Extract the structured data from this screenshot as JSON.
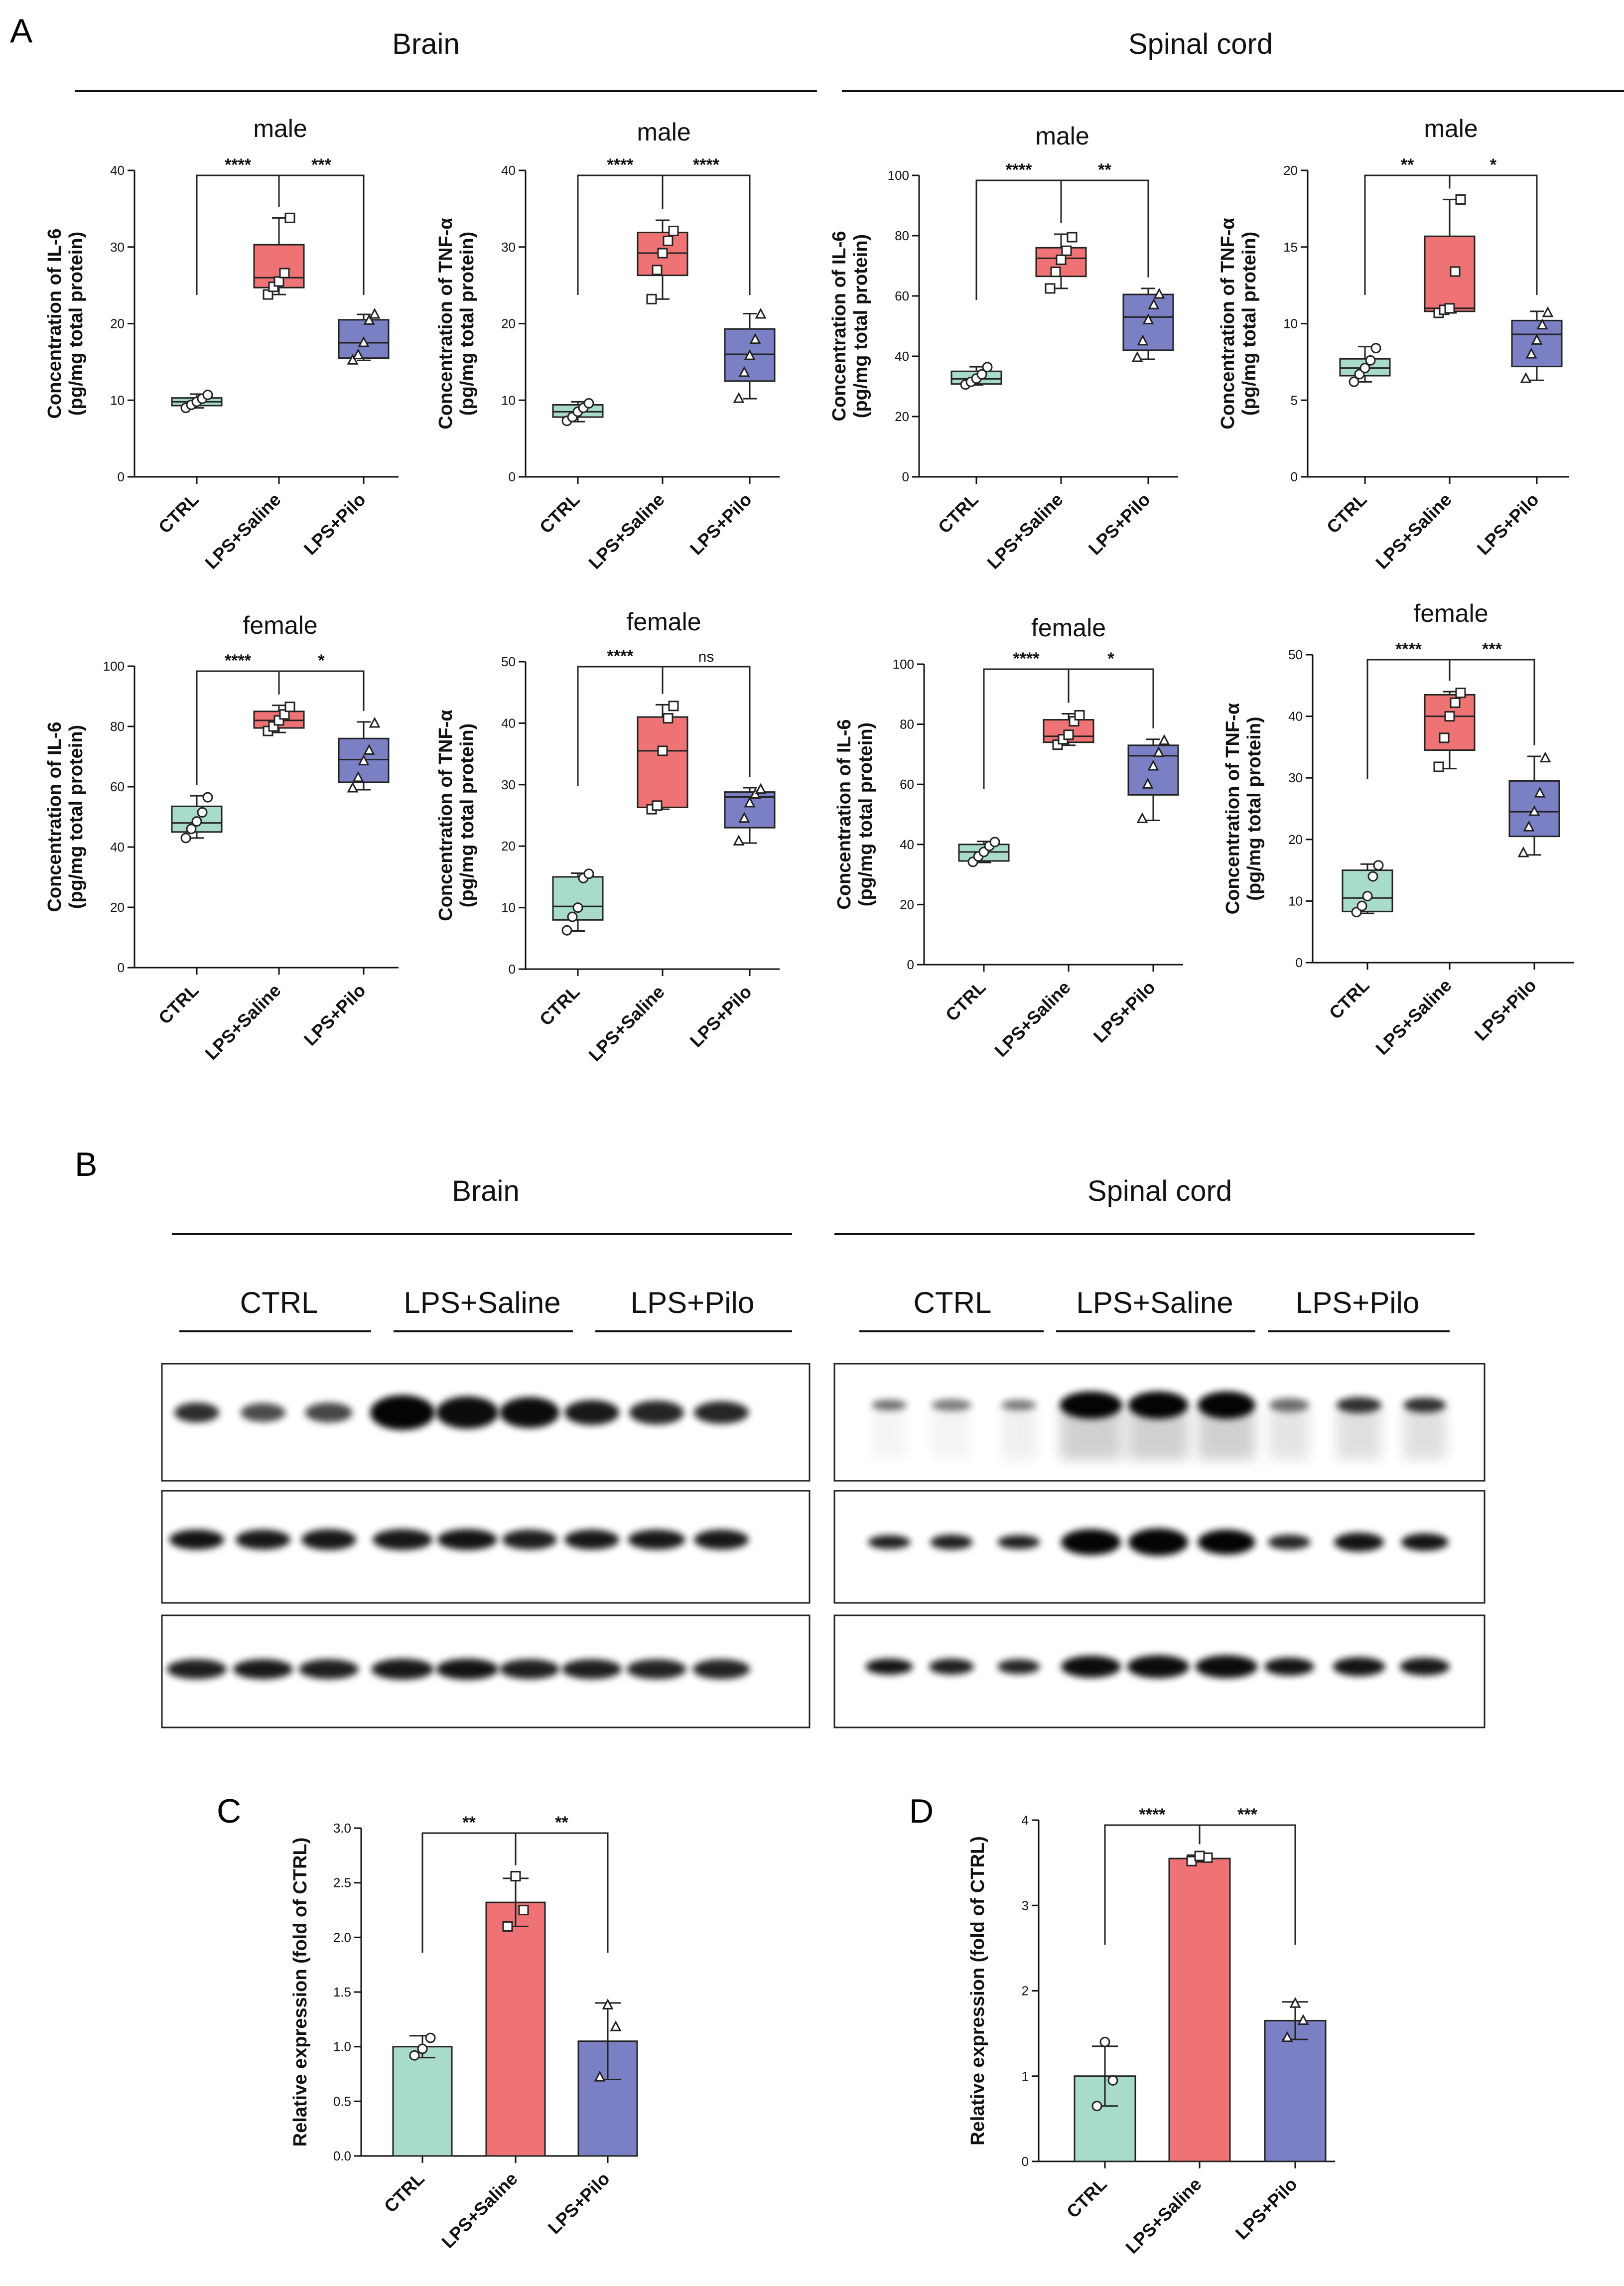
{
  "colors": {
    "CTRL": "#a8dcc8",
    "LPS+Saline": "#ef7374",
    "LPS+Pilo": "#7b7fc4"
  },
  "panel_A": {
    "letter": "A",
    "regions": [
      "Brain",
      "Spinal cord"
    ],
    "groups": [
      "CTRL",
      "LPS+Saline",
      "LPS+Pilo"
    ]
  },
  "panel_B": {
    "letter": "B",
    "regions": [
      "Brain",
      "Spinal cord"
    ],
    "lanes": [
      "CTRL",
      "LPS+Saline",
      "LPS+Pilo"
    ]
  },
  "panel_C": {
    "letter": "C"
  },
  "panel_D": {
    "letter": "D"
  },
  "chart_data": [
    {
      "id": "a1",
      "type": "box",
      "title": "male",
      "ylabel": [
        "Concentration of IL-6",
        "(pg/mg total protein)"
      ],
      "categories": [
        "CTRL",
        "LPS+Saline",
        "LPS+Pilo"
      ],
      "ylim": [
        0,
        40
      ],
      "yticks": [
        0,
        10,
        20,
        30,
        40
      ],
      "boxes": [
        {
          "min": 9.0,
          "q1": 9.3,
          "median": 9.8,
          "q3": 10.3,
          "max": 10.8,
          "points": [
            9.0,
            9.4,
            9.8,
            10.2,
            10.7
          ]
        },
        {
          "min": 23.8,
          "q1": 24.7,
          "median": 26.0,
          "q3": 30.3,
          "max": 33.8,
          "points": [
            23.8,
            24.8,
            25.5,
            26.6,
            33.8
          ]
        },
        {
          "min": 15.2,
          "q1": 15.5,
          "median": 17.5,
          "q3": 20.5,
          "max": 21.2,
          "points": [
            15.2,
            15.9,
            17.5,
            20.4,
            21.2
          ]
        }
      ],
      "significance": [
        {
          "from": 0,
          "to": 1,
          "label": "****"
        },
        {
          "from": 1,
          "to": 2,
          "label": "***"
        }
      ]
    },
    {
      "id": "a2",
      "type": "box",
      "title": "male",
      "ylabel": [
        "Concentration of TNF-α",
        "(pg/mg total protein)"
      ],
      "categories": [
        "CTRL",
        "LPS+Saline",
        "LPS+Pilo"
      ],
      "ylim": [
        0,
        40
      ],
      "yticks": [
        0,
        10,
        20,
        30,
        40
      ],
      "boxes": [
        {
          "min": 7.2,
          "q1": 7.8,
          "median": 8.5,
          "q3": 9.4,
          "max": 9.8,
          "points": [
            7.3,
            7.8,
            8.5,
            9.0,
            9.6
          ]
        },
        {
          "min": 23.2,
          "q1": 26.3,
          "median": 29.2,
          "q3": 31.9,
          "max": 33.5,
          "points": [
            23.2,
            27.0,
            29.2,
            30.8,
            32.1
          ]
        },
        {
          "min": 10.2,
          "q1": 12.5,
          "median": 16.0,
          "q3": 19.3,
          "max": 21.3,
          "points": [
            10.2,
            13.6,
            15.8,
            17.9,
            21.2
          ]
        }
      ],
      "significance": [
        {
          "from": 0,
          "to": 1,
          "label": "****"
        },
        {
          "from": 1,
          "to": 2,
          "label": "****"
        }
      ]
    },
    {
      "id": "a3",
      "type": "box",
      "title": "male",
      "ylabel": [
        "Concentration of IL-6",
        "(pg/mg total protein)"
      ],
      "categories": [
        "CTRL",
        "LPS+Saline",
        "LPS+Pilo"
      ],
      "ylim": [
        0,
        100
      ],
      "yticks": [
        0,
        20,
        40,
        60,
        80,
        100
      ],
      "boxes": [
        {
          "min": 30.5,
          "q1": 30.8,
          "median": 32.5,
          "q3": 35.0,
          "max": 36.5,
          "points": [
            30.6,
            31.5,
            32.6,
            34.0,
            36.4
          ]
        },
        {
          "min": 62.5,
          "q1": 66.5,
          "median": 72.5,
          "q3": 76.0,
          "max": 80.5,
          "points": [
            62.5,
            68.0,
            72.0,
            75.0,
            79.5
          ]
        },
        {
          "min": 39.0,
          "q1": 42.0,
          "median": 53.0,
          "q3": 60.5,
          "max": 62.5,
          "points": [
            39.5,
            45.0,
            52.0,
            57.0,
            60.5
          ]
        }
      ],
      "significance": [
        {
          "from": 0,
          "to": 1,
          "label": "****"
        },
        {
          "from": 1,
          "to": 2,
          "label": "**"
        }
      ]
    },
    {
      "id": "a4",
      "type": "box",
      "title": "male",
      "ylabel": [
        "Concentration of TNF-α",
        "(pg/mg total protein)"
      ],
      "categories": [
        "CTRL",
        "LPS+Saline",
        "LPS+Pilo"
      ],
      "ylim": [
        0,
        20
      ],
      "yticks": [
        0,
        5,
        10,
        15,
        20
      ],
      "boxes": [
        {
          "min": 6.2,
          "q1": 6.6,
          "median": 7.1,
          "q3": 7.7,
          "max": 8.5,
          "points": [
            6.2,
            6.7,
            7.1,
            7.6,
            8.4
          ]
        },
        {
          "min": 10.7,
          "q1": 10.8,
          "median": 11.0,
          "q3": 15.7,
          "max": 18.1,
          "points": [
            10.7,
            10.9,
            11.0,
            13.4,
            18.1
          ]
        },
        {
          "min": 6.3,
          "q1": 7.2,
          "median": 9.3,
          "q3": 10.2,
          "max": 10.8,
          "points": [
            6.4,
            8.0,
            8.9,
            9.9,
            10.7
          ]
        }
      ],
      "significance": [
        {
          "from": 0,
          "to": 1,
          "label": "**"
        },
        {
          "from": 1,
          "to": 2,
          "label": "*"
        }
      ]
    },
    {
      "id": "a5",
      "type": "box",
      "title": "female",
      "ylabel": [
        "Concentration of IL-6",
        "(pg/mg total protein)"
      ],
      "categories": [
        "CTRL",
        "LPS+Saline",
        "LPS+Pilo"
      ],
      "ylim": [
        0,
        100
      ],
      "yticks": [
        0,
        20,
        40,
        60,
        80,
        100
      ],
      "boxes": [
        {
          "min": 43.0,
          "q1": 45.0,
          "median": 48.0,
          "q3": 53.5,
          "max": 57.0,
          "points": [
            43.0,
            46.0,
            48.5,
            51.5,
            56.5
          ]
        },
        {
          "min": 78.0,
          "q1": 79.5,
          "median": 82.0,
          "q3": 85.0,
          "max": 87.0,
          "points": [
            78.5,
            80.0,
            82.0,
            84.0,
            86.5
          ]
        },
        {
          "min": 59.0,
          "q1": 61.5,
          "median": 69.0,
          "q3": 76.0,
          "max": 81.5,
          "points": [
            59.5,
            63.0,
            68.5,
            72.0,
            81.0
          ]
        }
      ],
      "significance": [
        {
          "from": 0,
          "to": 1,
          "label": "****"
        },
        {
          "from": 1,
          "to": 2,
          "label": "*"
        }
      ]
    },
    {
      "id": "a6",
      "type": "box",
      "title": "female",
      "ylabel": [
        "Concentration of TNF-α",
        "(pg/mg total protein)"
      ],
      "categories": [
        "CTRL",
        "LPS+Saline",
        "LPS+Pilo"
      ],
      "ylim": [
        0,
        50
      ],
      "yticks": [
        0,
        10,
        20,
        30,
        40,
        50
      ],
      "boxes": [
        {
          "min": 6.2,
          "q1": 8.0,
          "median": 10.2,
          "q3": 15.0,
          "max": 15.6,
          "points": [
            6.3,
            8.5,
            10.0,
            14.8,
            15.5
          ]
        },
        {
          "min": 26.0,
          "q1": 26.3,
          "median": 35.5,
          "q3": 41.0,
          "max": 43.0,
          "points": [
            26.0,
            26.6,
            35.5,
            40.8,
            42.8
          ]
        },
        {
          "min": 20.5,
          "q1": 23.0,
          "median": 28.0,
          "q3": 28.8,
          "max": 29.5,
          "points": [
            20.8,
            24.5,
            27.0,
            28.4,
            29.2
          ]
        }
      ],
      "significance": [
        {
          "from": 0,
          "to": 1,
          "label": "****"
        },
        {
          "from": 1,
          "to": 2,
          "label": "ns"
        }
      ]
    },
    {
      "id": "a7",
      "type": "box",
      "title": "female",
      "ylabel": [
        "Concentration of IL-6",
        "(pg/mg total protein)"
      ],
      "categories": [
        "CTRL",
        "LPS+Saline",
        "LPS+Pilo"
      ],
      "ylim": [
        0,
        100
      ],
      "yticks": [
        0,
        20,
        40,
        60,
        80,
        100
      ],
      "boxes": [
        {
          "min": 34.0,
          "q1": 34.5,
          "median": 37.5,
          "q3": 40.0,
          "max": 41.0,
          "points": [
            34.2,
            36.0,
            37.5,
            39.5,
            40.8
          ]
        },
        {
          "min": 73.0,
          "q1": 74.0,
          "median": 76.0,
          "q3": 81.5,
          "max": 83.5,
          "points": [
            73.2,
            75.0,
            76.5,
            81.0,
            83.0
          ]
        },
        {
          "min": 48.0,
          "q1": 56.5,
          "median": 69.5,
          "q3": 73.0,
          "max": 75.0,
          "points": [
            48.5,
            60.0,
            66.0,
            70.5,
            74.5
          ]
        }
      ],
      "significance": [
        {
          "from": 0,
          "to": 1,
          "label": "****"
        },
        {
          "from": 1,
          "to": 2,
          "label": "*"
        }
      ]
    },
    {
      "id": "a8",
      "type": "box",
      "title": "female",
      "ylabel": [
        "Concentration of TNF-α",
        "(pg/mg total protein)"
      ],
      "categories": [
        "CTRL",
        "LPS+Saline",
        "LPS+Pilo"
      ],
      "ylim": [
        0,
        50
      ],
      "yticks": [
        0,
        10,
        20,
        30,
        40,
        50
      ],
      "boxes": [
        {
          "min": 8.0,
          "q1": 8.3,
          "median": 10.5,
          "q3": 15.0,
          "max": 16.0,
          "points": [
            8.2,
            9.2,
            10.8,
            14.0,
            15.8
          ]
        },
        {
          "min": 31.5,
          "q1": 34.5,
          "median": 40.0,
          "q3": 43.5,
          "max": 44.0,
          "points": [
            31.8,
            36.5,
            40.0,
            42.2,
            43.8
          ]
        },
        {
          "min": 17.5,
          "q1": 20.5,
          "median": 24.5,
          "q3": 29.5,
          "max": 33.5,
          "points": [
            17.8,
            22.0,
            24.5,
            27.5,
            33.2
          ]
        }
      ],
      "significance": [
        {
          "from": 0,
          "to": 1,
          "label": "****"
        },
        {
          "from": 1,
          "to": 2,
          "label": "***"
        }
      ]
    },
    {
      "id": "c",
      "type": "bar",
      "ylabel": "Relative expression (fold of CTRL)",
      "categories": [
        "CTRL",
        "LPS+Saline",
        "LPS+Pilo"
      ],
      "ylim": [
        0,
        3.0
      ],
      "yticks": [
        0.0,
        0.5,
        1.0,
        1.5,
        2.0,
        2.5,
        3.0
      ],
      "values": [
        1.0,
        2.32,
        1.05
      ],
      "errors": [
        0.1,
        0.22,
        0.35
      ],
      "points": [
        [
          0.92,
          1.08,
          0.98
        ],
        [
          2.1,
          2.25,
          2.56
        ],
        [
          0.72,
          1.18,
          1.38
        ]
      ],
      "significance": [
        {
          "from": 0,
          "to": 1,
          "label": "**"
        },
        {
          "from": 1,
          "to": 2,
          "label": "**"
        }
      ]
    },
    {
      "id": "d",
      "type": "bar",
      "ylabel": "Relative expression (fold of CTRL)",
      "categories": [
        "CTRL",
        "LPS+Saline",
        "LPS+Pilo"
      ],
      "ylim": [
        0,
        4
      ],
      "yticks": [
        0,
        1,
        2,
        3,
        4
      ],
      "values": [
        1.0,
        3.55,
        1.65
      ],
      "errors": [
        0.35,
        0.04,
        0.22
      ],
      "points": [
        [
          0.65,
          0.95,
          1.4
        ],
        [
          3.52,
          3.56,
          3.58
        ],
        [
          1.45,
          1.65,
          1.85
        ]
      ],
      "significance": [
        {
          "from": 0,
          "to": 1,
          "label": "****"
        },
        {
          "from": 1,
          "to": 2,
          "label": "***"
        }
      ]
    }
  ]
}
